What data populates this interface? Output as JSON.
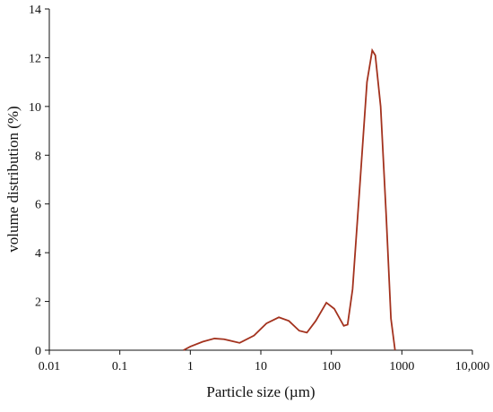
{
  "chart_data": {
    "type": "line",
    "x_label": "Particle size (µm)",
    "y_label": "volume distribution (%)",
    "x_scale": "log",
    "xlim": [
      0.01,
      10000
    ],
    "xticks": [
      0.01,
      0.1,
      1,
      10,
      100,
      1000,
      {
        "value": 10000,
        "label": "10,000"
      }
    ],
    "ylim": [
      0,
      14
    ],
    "yticks": [
      0,
      2,
      4,
      6,
      8,
      10,
      12,
      14
    ],
    "grid": false,
    "series": [
      {
        "color": "#a3321e",
        "x": [
          0.8,
          1,
          1.5,
          2.2,
          3,
          5,
          8,
          12,
          18,
          25,
          35,
          45,
          60,
          85,
          110,
          150,
          170,
          200,
          250,
          320,
          380,
          420,
          500,
          600,
          700,
          800
        ],
        "values": [
          0,
          0.15,
          0.35,
          0.48,
          0.45,
          0.3,
          0.6,
          1.1,
          1.35,
          1.2,
          0.8,
          0.72,
          1.2,
          1.95,
          1.7,
          1.0,
          1.05,
          2.5,
          6.5,
          11.0,
          12.3,
          12.1,
          10.0,
          5.5,
          1.3,
          0
        ]
      }
    ]
  }
}
